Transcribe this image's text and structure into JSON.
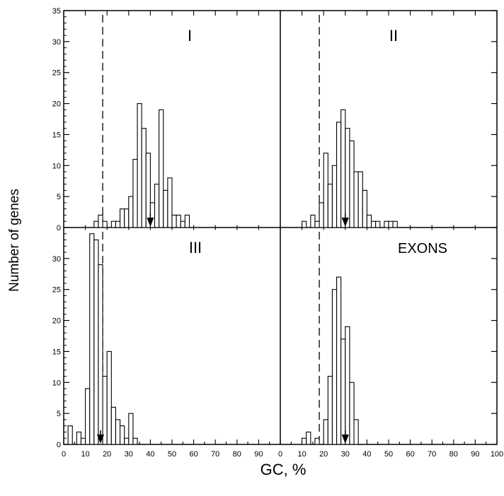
{
  "chart_data": {
    "type": "bar",
    "xlabel": "GC, %",
    "ylabel": "Number of genes",
    "xlim": [
      0,
      100
    ],
    "ylim": [
      0,
      35
    ],
    "bin_width": 2,
    "x_ticks_left": [
      "0",
      "10",
      "20",
      "30",
      "40",
      "50",
      "60",
      "70",
      "80",
      "90"
    ],
    "x_ticks_right": [
      "0",
      "10",
      "20",
      "30",
      "40",
      "50",
      "60",
      "70",
      "80",
      "90",
      "100"
    ],
    "y_ticks": [
      "35",
      "30",
      "25",
      "20",
      "15",
      "10",
      "5",
      "0"
    ],
    "y_ticks_lower": [
      "30",
      "25",
      "20",
      "15",
      "10",
      "5",
      "0"
    ],
    "dashed_line_x": 18,
    "panels": [
      {
        "label": "I",
        "mean_arrow_x": 40,
        "x": [
          14,
          16,
          18,
          20,
          22,
          24,
          26,
          28,
          30,
          32,
          34,
          36,
          38,
          40,
          42,
          44,
          46,
          48,
          50,
          52,
          54,
          56,
          58
        ],
        "values": [
          1,
          2,
          1,
          0,
          1,
          1,
          3,
          3,
          5,
          11,
          20,
          16,
          12,
          4,
          7,
          19,
          6,
          8,
          2,
          2,
          1,
          2,
          0
        ]
      },
      {
        "label": "II",
        "mean_arrow_x": 30,
        "x": [
          10,
          12,
          14,
          16,
          18,
          20,
          22,
          24,
          26,
          28,
          30,
          32,
          34,
          36,
          38,
          40,
          42,
          44,
          46,
          48,
          50,
          52,
          54,
          56
        ],
        "values": [
          1,
          0,
          2,
          1,
          4,
          12,
          7,
          10,
          17,
          19,
          16,
          14,
          9,
          9,
          6,
          2,
          1,
          1,
          0,
          1,
          1,
          1,
          0,
          0
        ]
      },
      {
        "label": "III",
        "mean_arrow_x": 17,
        "x": [
          2,
          4,
          6,
          8,
          10,
          12,
          14,
          16,
          18,
          20,
          22,
          24,
          26,
          28,
          30,
          32
        ],
        "values": [
          3,
          0,
          2,
          1,
          9,
          34,
          33,
          29,
          11,
          15,
          6,
          4,
          3,
          1,
          5,
          1
        ]
      },
      {
        "label": "EXONS",
        "mean_arrow_x": 30,
        "x": [
          10,
          12,
          14,
          16,
          18,
          20,
          22,
          24,
          26,
          28,
          30,
          32,
          34,
          36,
          38
        ],
        "values": [
          1,
          2,
          0,
          1,
          0,
          4,
          11,
          25,
          27,
          17,
          19,
          10,
          4,
          0,
          0
        ]
      }
    ]
  }
}
